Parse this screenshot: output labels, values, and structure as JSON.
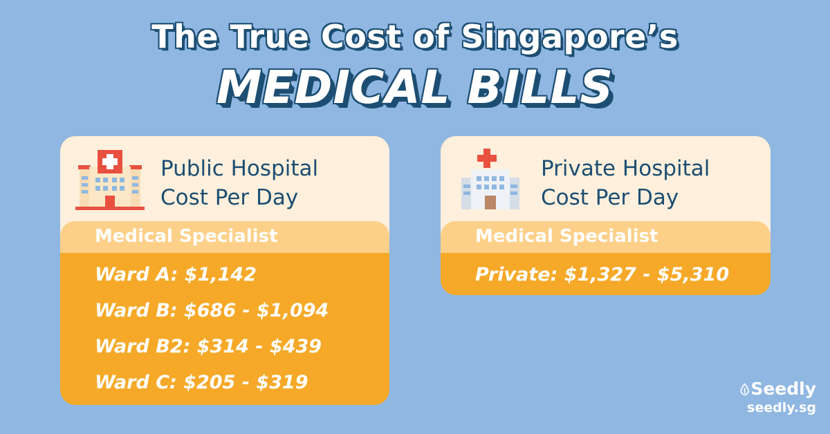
{
  "title": {
    "line1": "The True Cost of Singapore’s",
    "line2": "MEDICAL BILLS"
  },
  "public": {
    "title_line1": "Public Hospital",
    "title_line2": "Cost Per Day",
    "subheader": "Medical Specialist",
    "rows": [
      "Ward A: $1,142",
      "Ward B: $686 - $1,094",
      "Ward B2: $314 - $439",
      "Ward C: $205 - $319"
    ]
  },
  "private": {
    "title_line1": "Private Hospital",
    "title_line2": "Cost Per Day",
    "subheader": "Medical Specialist",
    "rows": [
      "Private: $1,327 - $5,310"
    ]
  },
  "brand": {
    "name": "Seedly",
    "url": "seedly.sg"
  },
  "colors": {
    "background": "#8fb7e2",
    "navy": "#1d4e72",
    "card_head": "#fef0dc",
    "card_sub": "#fdd089",
    "card_body": "#f6a928"
  },
  "icons": [
    "public-hospital-icon",
    "private-hospital-icon",
    "seedly-logo-icon"
  ]
}
